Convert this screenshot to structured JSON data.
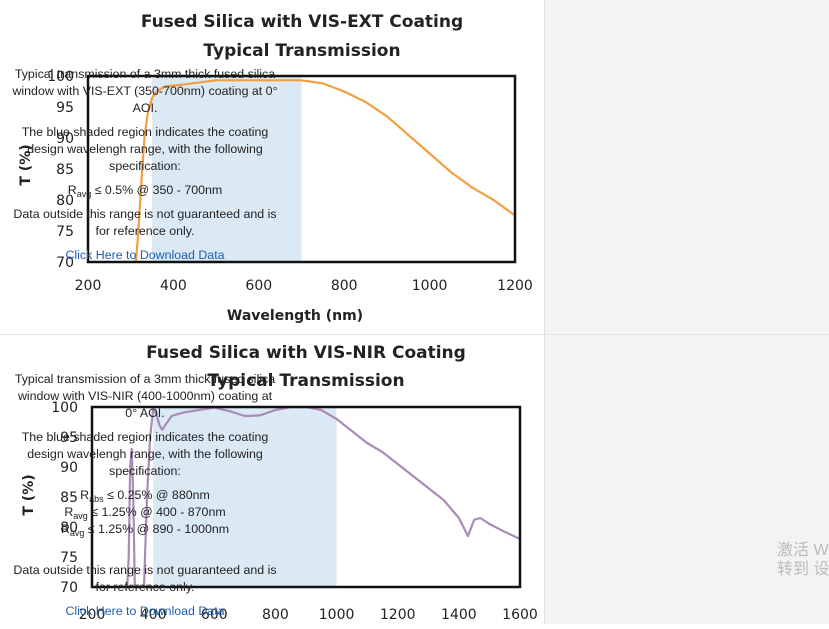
{
  "charts": [
    {
      "title_line1": "Fused Silica with VIS-EXT Coating",
      "title_line2": "Typical Transmission",
      "ylabel": "T (%)",
      "xlabel": "Wavelength (nm)",
      "x_ticks": [
        "200",
        "400",
        "600",
        "800",
        "1000",
        "1200"
      ],
      "y_ticks": [
        "100",
        "95",
        "90",
        "85",
        "80",
        "75",
        "70"
      ],
      "line_color": "#f0a040",
      "shade_color": "#dbe9f5"
    },
    {
      "title_line1": "Fused Silica with VIS-NIR Coating",
      "title_line2": "Typical Transmission",
      "ylabel": "T (%)",
      "xlabel": "",
      "x_ticks": [
        "200",
        "400",
        "600",
        "800",
        "1000",
        "1200",
        "1400",
        "1600"
      ],
      "y_ticks": [
        "100",
        "95",
        "90",
        "85",
        "80",
        "75",
        "70"
      ],
      "line_color": "#a98bb7",
      "shade_color": "#dbe9f5"
    }
  ],
  "chart_data": [
    {
      "type": "line",
      "title": "Fused Silica with VIS-EXT Coating Typical Transmission",
      "xlabel": "Wavelength (nm)",
      "ylabel": "T (%)",
      "xlim": [
        200,
        1200
      ],
      "ylim": [
        70,
        100
      ],
      "shaded_range": [
        350,
        700
      ],
      "series": [
        {
          "x": [
            312,
            318,
            325,
            332,
            340,
            350,
            360,
            380,
            420,
            500,
            600,
            700,
            750,
            800,
            850,
            900,
            950,
            1000,
            1050,
            1100,
            1150,
            1200
          ],
          "y": [
            70,
            75,
            83,
            90,
            94,
            96.5,
            97.5,
            98.3,
            98.6,
            99.3,
            99.3,
            99.3,
            98.8,
            97.5,
            95.8,
            93.5,
            90.5,
            87.5,
            84.5,
            82,
            80,
            77.5
          ]
        }
      ]
    },
    {
      "type": "line",
      "title": "Fused Silica with VIS-NIR Coating Typical Transmission",
      "xlabel": "",
      "ylabel": "T (%)",
      "xlim": [
        200,
        1600
      ],
      "ylim": [
        70,
        100
      ],
      "shaded_range": [
        400,
        1000
      ],
      "series": [
        {
          "x": [
            315,
            320,
            325,
            330,
            335,
            340,
            345,
            370,
            380,
            390,
            400,
            410,
            420,
            430,
            440,
            460,
            500,
            550,
            600,
            650,
            700,
            750,
            800,
            850,
            900,
            950,
            1000,
            1050,
            1100,
            1150,
            1200,
            1250,
            1300,
            1350,
            1400,
            1430,
            1450,
            1470,
            1500,
            1550,
            1600
          ],
          "y": [
            70,
            75,
            90,
            93,
            85,
            70,
            70,
            70,
            85,
            95,
            99.5,
            99,
            97,
            96.2,
            97,
            98.5,
            99.1,
            99.5,
            99.9,
            99.3,
            98.5,
            98.6,
            99.5,
            100,
            100,
            99.5,
            98,
            96,
            94,
            92.5,
            90.5,
            88.5,
            86.5,
            84.5,
            81.5,
            78.5,
            81.2,
            81.5,
            80.5,
            79.2,
            78
          ]
        }
      ]
    }
  ],
  "descriptions": [
    {
      "p1": "Typical transmission of a 3mm thick fused silica window with VIS-EXT (350-700nm) coating at 0° AOI.",
      "p2": "The blue shaded region indicates the coating design wavelengh range, with the following specification:",
      "specs": [
        {
          "sym": "R",
          "sub": "avg",
          "text": "≤ 0.5% @ 350 - 700nm"
        }
      ],
      "p3": "Data outside this range is not guaranteed and is for reference only.",
      "link": "Click Here to Download Data"
    },
    {
      "p1": "Typical transmission of a 3mm thick fused silica window with VIS-NIR (400-1000nm) coating at 0° AOI.",
      "p2": "The blue shaded region indicates the coating design wavelengh range, with the following specification:",
      "specs": [
        {
          "sym": "R",
          "sub": "abs",
          "text": "≤ 0.25% @ 880nm"
        },
        {
          "sym": "R",
          "sub": "avg",
          "text": "≤ 1.25% @ 400 - 870nm"
        },
        {
          "sym": "R",
          "sub": "avg",
          "text": "≤ 1.25% @ 890 - 1000nm"
        }
      ],
      "p3": "Data outside this range is not guaranteed and is for reference only.",
      "link": "Click Here to Download Data"
    }
  ],
  "watermark": {
    "line1": "激活 Windows",
    "line2": "转到 设置以激活 Windows。"
  }
}
